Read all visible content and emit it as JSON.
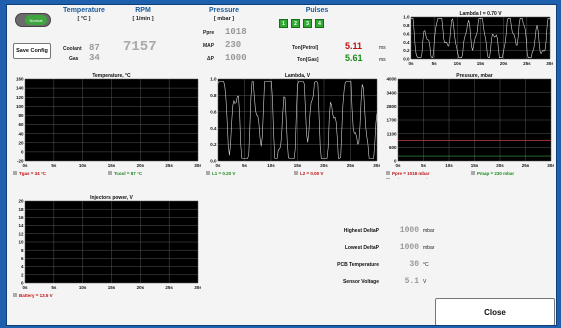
{
  "header": {
    "temperature": {
      "title": "Temperature",
      "unit": "[ °C ]"
    },
    "rpm": {
      "title": "RPM",
      "unit": "[ 1/min ]"
    },
    "pressure": {
      "title": "Pressure",
      "unit": "[ mbar ]"
    },
    "pulses": {
      "title": "Pulses"
    },
    "coolant": {
      "label": "Coolant",
      "value": "87"
    },
    "gas": {
      "label": "Gas",
      "value": "34"
    },
    "rpm_value": "7157",
    "ppre": {
      "label": "Ppre",
      "value": "1018"
    },
    "map": {
      "label": "MAP",
      "value": "230"
    },
    "dp": {
      "label": "ΔP",
      "value": "1000"
    },
    "pulse_buttons": [
      "1",
      "2",
      "3",
      "4"
    ],
    "ton_petrol": {
      "label": "Ton[Petrol]",
      "value": "5.11",
      "unit": "ms"
    },
    "ton_gas": {
      "label": "Ton[Gas]",
      "value": "5.61",
      "unit": "ms"
    }
  },
  "controls": {
    "toggle_label": "Normal",
    "save_config": "Save Config",
    "close": "Close"
  },
  "colors": {
    "grid_bg": "#000000",
    "trace": "#d8d8d8",
    "red": "#c01010",
    "green": "#1a8a1a",
    "accent": "#1a5a9e"
  },
  "charts": {
    "lambda_small": {
      "title": "Lambda I = 0.70 V",
      "yticks": [
        "1.0",
        "0.8",
        "0.6",
        "0.4",
        "0.2",
        "0.0"
      ],
      "xticks": [
        "0s",
        "5s",
        "10s",
        "15s",
        "20s",
        "25s",
        "30s"
      ]
    },
    "temperature": {
      "title": "Temperature, °C",
      "yticks": [
        "160",
        "140",
        "120",
        "100",
        "80",
        "60",
        "40",
        "20",
        "0",
        "-20"
      ],
      "xticks": [
        "0s",
        "5s",
        "10s",
        "15s",
        "20s",
        "25s",
        "30s"
      ],
      "legend": [
        {
          "text": "Tgas = 34 °C",
          "color": "red"
        },
        {
          "text": "Tcool = 87 °C",
          "color": "green"
        }
      ]
    },
    "lambda": {
      "title": "Lambda, V",
      "yticks": [
        "1.0",
        "0.8",
        "0.6",
        "0.4",
        "0.2",
        "0.0"
      ],
      "xticks": [
        "0s",
        "5s",
        "10s",
        "15s",
        "20s",
        "25s",
        "30s"
      ],
      "legend": [
        {
          "text": "L1 = 0.20 V",
          "color": "green"
        },
        {
          "text": "L2 = 0.00 V",
          "color": "red"
        }
      ]
    },
    "pressure": {
      "title": "Pressure, mbar",
      "yticks": [
        "4000",
        "3400",
        "2800",
        "1700",
        "1100",
        "600",
        "0"
      ],
      "xticks": [
        "0s",
        "5s",
        "10s",
        "15s",
        "20s",
        "25s",
        "30s"
      ],
      "legend": [
        {
          "text": "Ppre = 1018 mbar",
          "color": "red"
        },
        {
          "text": "Pmap = 230 mbar",
          "color": "green"
        },
        {
          "text": "DeltaP = 1000 mbar",
          "color": "green"
        }
      ]
    },
    "injectors": {
      "title": "Injectors power, V",
      "yticks": [
        "20",
        "18",
        "16",
        "14",
        "12",
        "10",
        "8",
        "6",
        "4",
        "2",
        "0"
      ],
      "xticks": [
        "0s",
        "5s",
        "10s",
        "15s",
        "20s",
        "25s",
        "30s"
      ],
      "legend": [
        {
          "text": "Battery = 13.5 V",
          "color": "red"
        }
      ]
    }
  },
  "stats": [
    {
      "label": "Highest DeltaP",
      "value": "1000",
      "unit": "mbar"
    },
    {
      "label": "Lowest DeltaP",
      "value": "1000",
      "unit": "mbar"
    },
    {
      "label": "PCB Temperature",
      "value": "30",
      "unit": "°C"
    },
    {
      "label": "Sensor Voltage",
      "value": "5.1",
      "unit": "V"
    }
  ]
}
